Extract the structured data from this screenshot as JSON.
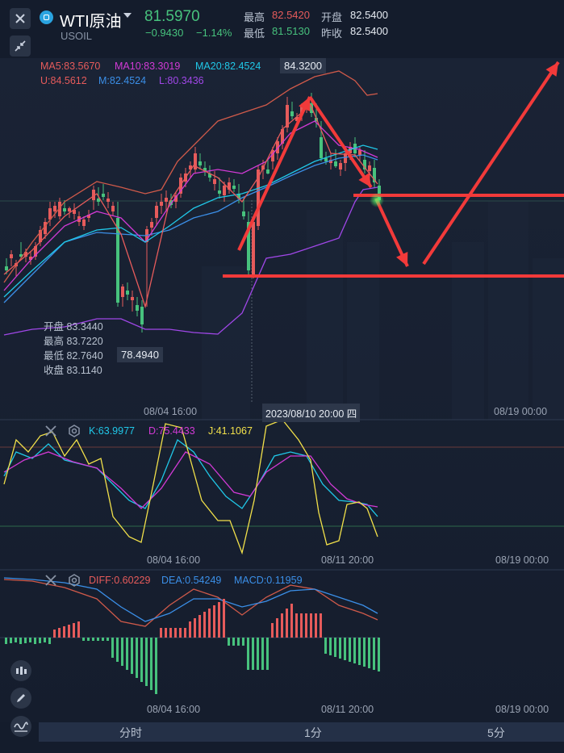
{
  "header": {
    "symbol": "WTI原油",
    "code": "USOIL",
    "price": "81.5970",
    "change": "−0.9430",
    "change_pct": "−1.14%",
    "stats": [
      {
        "label": "最高",
        "value": "82.5420"
      },
      {
        "label": "开盘",
        "value": "82.5400"
      },
      {
        "label": "最低",
        "value": "81.5130"
      },
      {
        "label": "昨收",
        "value": "82.5400"
      }
    ]
  },
  "main_chart": {
    "ma_legend": {
      "ma5": "MA5:83.5670",
      "ma10": "MA10:83.3019",
      "ma20": "MA20:82.4524",
      "u": "U:84.5612",
      "m": "M:82.4524",
      "l": "L:80.3436"
    },
    "high_marker": "84.3200",
    "low_marker": "78.4940",
    "ohlc_tooltip": {
      "open": "开盘 83.3440",
      "high": "最高 83.7220",
      "low": "最低 82.7640",
      "close": "收盘 83.1140"
    },
    "x_labels": [
      "08/04 16:00",
      "08/19 00:00"
    ],
    "crosshair_time": "2023/08/10 20:00 四"
  },
  "kdj": {
    "k": "K:63.9977",
    "d": "D:75.4433",
    "j": "J:41.1067",
    "x_labels": [
      "08/04 16:00",
      "08/11 20:00",
      "08/19 00:00"
    ]
  },
  "macd": {
    "diff": "DIFF:0.60229",
    "dea": "DEA:0.54249",
    "macd": "MACD:0.11959",
    "x_labels": [
      "08/04 16:00",
      "08/11 20:00",
      "08/19 00:00"
    ]
  },
  "tabs": [
    "分时",
    "1分",
    "5分"
  ],
  "colors": {
    "background": "#141c2c",
    "up": "#e65b5b",
    "down": "#47c27d",
    "ma5": "#e65b5b",
    "ma10": "#d23ad6",
    "ma20": "#20c8e8",
    "boll_mid": "#3b8fe8",
    "boll_low": "#a047e8",
    "kdj_j": "#f2e14a",
    "annotation": "#f23a3a"
  }
}
